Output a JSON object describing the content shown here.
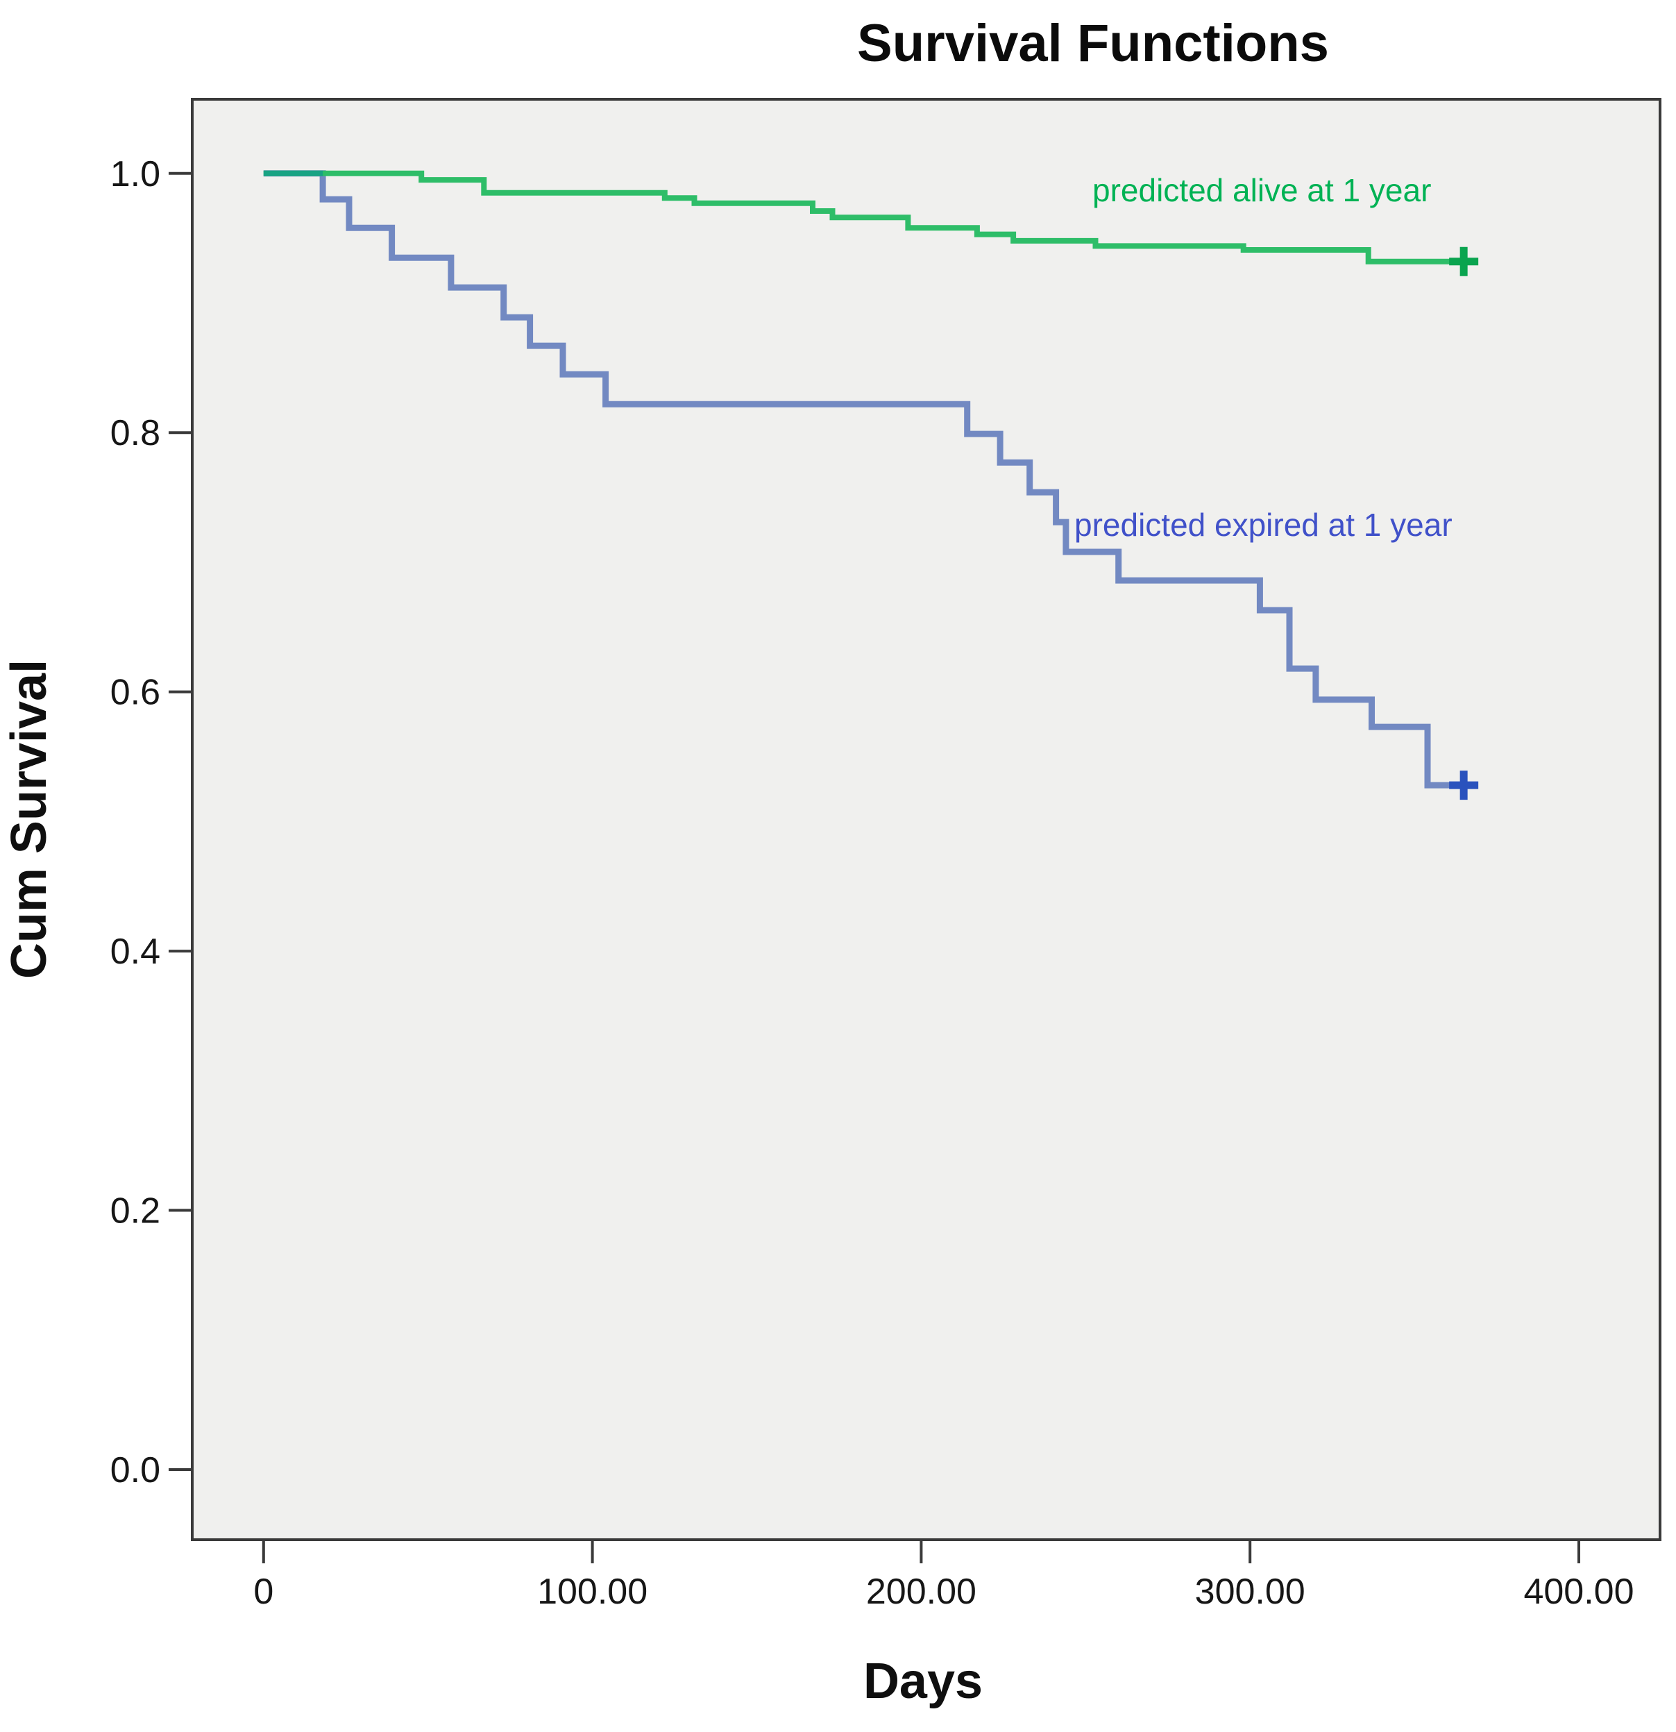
{
  "chart_data": {
    "type": "line",
    "subtype": "kaplan-meier-step",
    "title": "Survival Functions",
    "xlabel": "Days",
    "ylabel": "Cum Survival",
    "xlim": [
      -21.7,
      424.7
    ],
    "ylim": [
      -0.0541,
      1.0572
    ],
    "grid": false,
    "legend_position": "inline-labels",
    "plot_bg": "#f0f0ee",
    "border_color": "#3a3a3a",
    "tick_color": "#3a3a3a",
    "xticks": [
      {
        "value": 0,
        "label": "0"
      },
      {
        "value": 100,
        "label": "100.00"
      },
      {
        "value": 200,
        "label": "200.00"
      },
      {
        "value": 300,
        "label": "300.00"
      },
      {
        "value": 400,
        "label": "400.00"
      }
    ],
    "yticks": [
      {
        "value": 0.0,
        "label": "0.0"
      },
      {
        "value": 0.2,
        "label": "0.2"
      },
      {
        "value": 0.4,
        "label": "0.4"
      },
      {
        "value": 0.6,
        "label": "0.6"
      },
      {
        "value": 0.8,
        "label": "0.8"
      },
      {
        "value": 1.0,
        "label": "1.0"
      }
    ],
    "series": [
      {
        "name": "predicted-alive",
        "label": "predicted alive at 1 year",
        "color": "#2ebd68",
        "label_color": "#00b254",
        "censor_color": "#0aa44f",
        "line_width": 8,
        "data": [
          [
            0,
            1.0
          ],
          [
            48,
            0.995
          ],
          [
            67,
            0.985
          ],
          [
            122,
            0.981
          ],
          [
            131,
            0.977
          ],
          [
            167,
            0.971
          ],
          [
            173,
            0.966
          ],
          [
            196,
            0.958
          ],
          [
            217,
            0.953
          ],
          [
            228,
            0.948
          ],
          [
            253,
            0.944
          ],
          [
            298,
            0.941
          ],
          [
            336,
            0.932
          ]
        ],
        "censor": {
          "x": 365,
          "y": 0.932
        }
      },
      {
        "name": "predicted-expired",
        "label": "predicted expired at 1 year",
        "color": "#7289c2",
        "label_color": "#4051c9",
        "censor_color": "#2a52bd",
        "line_width": 9,
        "data": [
          [
            0,
            1.0
          ],
          [
            18,
            0.98
          ],
          [
            26,
            0.958
          ],
          [
            39,
            0.935
          ],
          [
            57,
            0.912
          ],
          [
            73,
            0.889
          ],
          [
            81,
            0.867
          ],
          [
            91,
            0.845
          ],
          [
            104,
            0.822
          ],
          [
            214,
            0.799
          ],
          [
            224,
            0.777
          ],
          [
            233,
            0.754
          ],
          [
            241,
            0.731
          ],
          [
            244,
            0.708
          ],
          [
            260,
            0.686
          ],
          [
            303,
            0.663
          ],
          [
            312,
            0.618
          ],
          [
            320,
            0.594
          ],
          [
            337,
            0.573
          ],
          [
            354,
            0.528
          ]
        ],
        "censor": {
          "x": 365,
          "y": 0.528
        }
      }
    ],
    "overlap_segment": {
      "color": "#18a383",
      "y": 1.0,
      "x_from": 0,
      "x_to": 18
    }
  }
}
